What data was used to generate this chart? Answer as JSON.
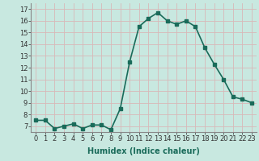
{
  "x": [
    0,
    1,
    2,
    3,
    4,
    5,
    6,
    7,
    8,
    9,
    10,
    11,
    12,
    13,
    14,
    15,
    16,
    17,
    18,
    19,
    20,
    21,
    22,
    23
  ],
  "y": [
    7.5,
    7.5,
    6.8,
    7.0,
    7.2,
    6.8,
    7.1,
    7.1,
    6.7,
    8.5,
    12.5,
    15.5,
    16.2,
    16.7,
    16.0,
    15.7,
    16.0,
    15.5,
    13.7,
    12.3,
    11.0,
    9.5,
    9.3,
    9.0
  ],
  "line_color": "#1a6b5a",
  "marker_color": "#1a6b5a",
  "bg_color": "#c8e8e0",
  "grid_color": "#d8b8b8",
  "xlabel": "Humidex (Indice chaleur)",
  "ylim": [
    6.5,
    17.5
  ],
  "xlim": [
    -0.5,
    23.5
  ],
  "yticks": [
    7,
    8,
    9,
    10,
    11,
    12,
    13,
    14,
    15,
    16,
    17
  ],
  "xticks": [
    0,
    1,
    2,
    3,
    4,
    5,
    6,
    7,
    8,
    9,
    10,
    11,
    12,
    13,
    14,
    15,
    16,
    17,
    18,
    19,
    20,
    21,
    22,
    23
  ],
  "xlabel_fontsize": 7,
  "tick_fontsize": 6,
  "line_width": 1.2,
  "marker_size": 2.5
}
